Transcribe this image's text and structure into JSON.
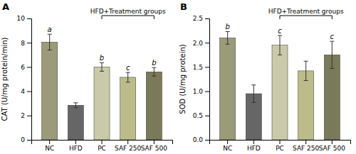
{
  "chart_data": [
    {
      "type": "bar",
      "title": "A",
      "y_label": "CAT (U/mg protein/min)",
      "categories": [
        "NC",
        "HFD",
        "PC",
        "SAF 250",
        "SAF 500"
      ],
      "values": [
        8.05,
        2.85,
        6.0,
        5.15,
        5.6
      ],
      "errors": [
        0.65,
        0.2,
        0.35,
        0.4,
        0.35
      ],
      "colors": [
        "#9B9B7A",
        "#666666",
        "#CACAAA",
        "#BCBC8A",
        "#7A7A5A"
      ],
      "ylim": [
        0,
        10
      ],
      "yticks": [
        0,
        2,
        4,
        6,
        8,
        10
      ],
      "grid": false,
      "bar_labels": [
        "a",
        null,
        "b",
        "c",
        "b"
      ],
      "bracket": {
        "text": "HFD+Treatment groups",
        "from": "PC",
        "to": "SAF 500"
      }
    },
    {
      "type": "bar",
      "title": "B",
      "y_label": "SOD (U/mg protein)",
      "categories": [
        "NC",
        "HFD",
        "PC",
        "SAF 250",
        "SAF 500"
      ],
      "values": [
        2.1,
        0.95,
        1.95,
        1.42,
        1.75
      ],
      "errors": [
        0.13,
        0.18,
        0.2,
        0.2,
        0.28
      ],
      "colors": [
        "#9B9B7A",
        "#666666",
        "#CACAAA",
        "#BCBC8A",
        "#7A7A5A"
      ],
      "ylim": [
        0,
        2.5
      ],
      "yticks": [
        {
          "value": 0,
          "label": "0.0"
        },
        0.5,
        {
          "value": 1,
          "label": "1.0"
        },
        1.5,
        {
          "value": 2,
          "label": "2.0"
        },
        2.5
      ],
      "grid": false,
      "bar_labels": [
        "b",
        null,
        "c",
        null,
        "c"
      ],
      "bracket": {
        "text": "HFD+Treatment groups",
        "from": "PC",
        "to": "SAF 500"
      }
    }
  ]
}
